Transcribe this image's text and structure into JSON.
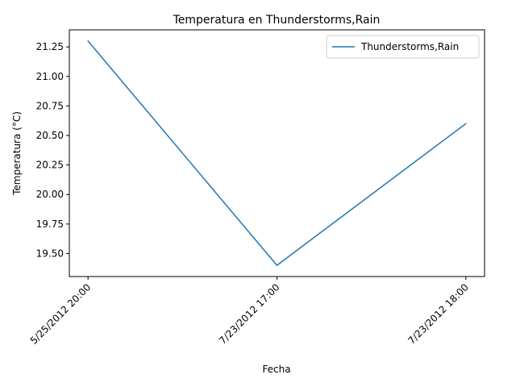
{
  "chart_data": {
    "type": "line",
    "title": "Temperatura en Thunderstorms,Rain",
    "xlabel": "Fecha",
    "ylabel": "Temperatura (°C)",
    "categories": [
      "5/25/2012 20:00",
      "7/23/2012 17:00",
      "7/23/2012 18:00"
    ],
    "series": [
      {
        "name": "Thunderstorms,Rain",
        "color": "#1f77b4",
        "values": [
          21.3,
          19.4,
          20.6
        ]
      }
    ],
    "ylim": [
      19.305,
      21.395
    ],
    "yticks": [
      19.5,
      19.75,
      20.0,
      20.25,
      20.5,
      20.75,
      21.0,
      21.25
    ],
    "ytick_labels": [
      "19.50",
      "19.75",
      "20.00",
      "20.25",
      "20.50",
      "20.75",
      "21.00",
      "21.25"
    ],
    "grid": false,
    "legend_position": "top-right"
  }
}
